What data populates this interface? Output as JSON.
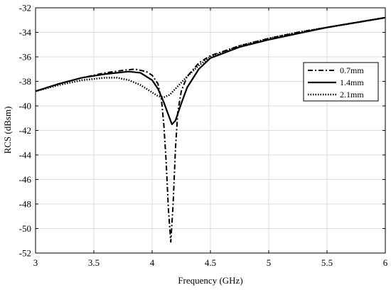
{
  "chart_data": {
    "type": "line",
    "title": "",
    "xlabel": "Frequency (GHz)",
    "ylabel": "RCS (dBsm)",
    "xlim": [
      3,
      6
    ],
    "ylim": [
      -52,
      -32
    ],
    "xticks": [
      "3",
      "3.5",
      "4",
      "4.5",
      "5",
      "5.5",
      "6"
    ],
    "yticks": [
      "-52",
      "-50",
      "-48",
      "-46",
      "-44",
      "-42",
      "-40",
      "-38",
      "-36",
      "-34",
      "-32"
    ],
    "grid": true,
    "legend_position": "top-right",
    "series": [
      {
        "name": "0.7mm",
        "style": "dashdot",
        "color": "#000000",
        "points": [
          [
            3.0,
            -38.8
          ],
          [
            3.2,
            -38.2
          ],
          [
            3.4,
            -37.7
          ],
          [
            3.6,
            -37.3
          ],
          [
            3.75,
            -37.1
          ],
          [
            3.85,
            -37.0
          ],
          [
            3.95,
            -37.2
          ],
          [
            4.0,
            -37.5
          ],
          [
            4.05,
            -38.2
          ],
          [
            4.08,
            -39.5
          ],
          [
            4.1,
            -41.5
          ],
          [
            4.12,
            -44.5
          ],
          [
            4.14,
            -48.5
          ],
          [
            4.16,
            -51.1
          ],
          [
            4.18,
            -48.0
          ],
          [
            4.2,
            -43.5
          ],
          [
            4.22,
            -40.5
          ],
          [
            4.25,
            -38.8
          ],
          [
            4.3,
            -37.6
          ],
          [
            4.4,
            -36.5
          ],
          [
            4.5,
            -35.9
          ],
          [
            4.75,
            -35.1
          ],
          [
            5.0,
            -34.5
          ],
          [
            5.25,
            -34.0
          ],
          [
            5.5,
            -33.6
          ],
          [
            5.75,
            -33.2
          ],
          [
            6.0,
            -32.8
          ]
        ]
      },
      {
        "name": "1.4mm",
        "style": "solid",
        "color": "#000000",
        "points": [
          [
            3.0,
            -38.8
          ],
          [
            3.2,
            -38.2
          ],
          [
            3.4,
            -37.7
          ],
          [
            3.6,
            -37.4
          ],
          [
            3.8,
            -37.2
          ],
          [
            3.9,
            -37.3
          ],
          [
            4.0,
            -37.9
          ],
          [
            4.05,
            -38.6
          ],
          [
            4.1,
            -39.7
          ],
          [
            4.15,
            -41.0
          ],
          [
            4.17,
            -41.5
          ],
          [
            4.2,
            -41.2
          ],
          [
            4.25,
            -39.8
          ],
          [
            4.3,
            -38.5
          ],
          [
            4.4,
            -37.0
          ],
          [
            4.5,
            -36.1
          ],
          [
            4.75,
            -35.2
          ],
          [
            5.0,
            -34.6
          ],
          [
            5.25,
            -34.1
          ],
          [
            5.5,
            -33.6
          ],
          [
            5.75,
            -33.2
          ],
          [
            6.0,
            -32.8
          ]
        ]
      },
      {
        "name": "2.1mm",
        "style": "dotted",
        "color": "#000000",
        "points": [
          [
            3.0,
            -38.8
          ],
          [
            3.2,
            -38.3
          ],
          [
            3.4,
            -37.9
          ],
          [
            3.6,
            -37.7
          ],
          [
            3.7,
            -37.7
          ],
          [
            3.8,
            -37.9
          ],
          [
            3.9,
            -38.3
          ],
          [
            4.0,
            -38.9
          ],
          [
            4.05,
            -39.2
          ],
          [
            4.1,
            -39.3
          ],
          [
            4.15,
            -39.1
          ],
          [
            4.2,
            -38.6
          ],
          [
            4.3,
            -37.6
          ],
          [
            4.4,
            -36.7
          ],
          [
            4.5,
            -36.0
          ],
          [
            4.75,
            -35.1
          ],
          [
            5.0,
            -34.5
          ],
          [
            5.25,
            -34.0
          ],
          [
            5.5,
            -33.6
          ],
          [
            5.75,
            -33.2
          ],
          [
            6.0,
            -32.8
          ]
        ]
      }
    ]
  }
}
